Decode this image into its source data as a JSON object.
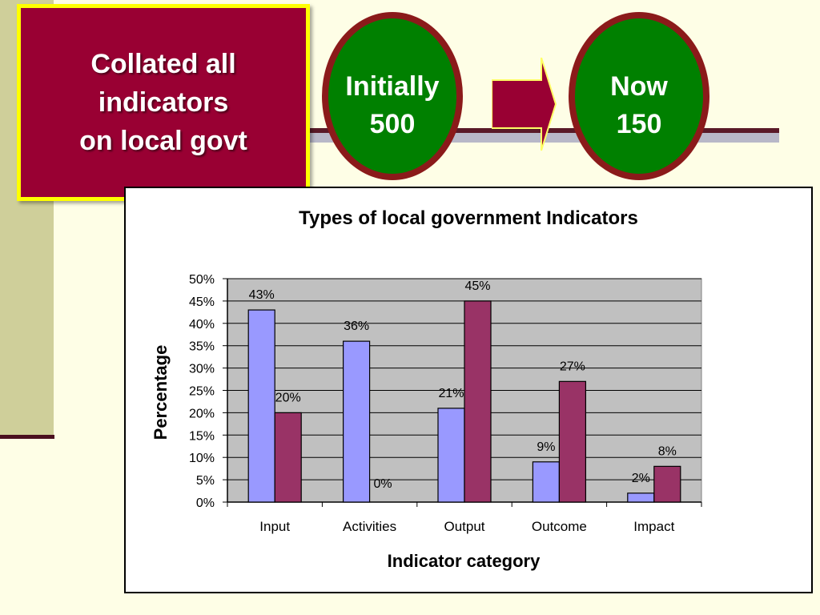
{
  "slide": {
    "title_lines": [
      "Collated all",
      "indicators",
      "on local govt"
    ],
    "circle_initial": {
      "label": "Initially",
      "value": "500"
    },
    "circle_now": {
      "label": "Now",
      "value": "150"
    },
    "colors": {
      "box_bg": "#990033",
      "box_border": "#ffff00",
      "circle_fill": "#008000",
      "circle_border": "#8b1a1a",
      "arrow": "#990033"
    }
  },
  "chart_data": {
    "type": "bar",
    "title": "Types of local government Indicators",
    "xlabel": "Indicator category",
    "ylabel": "Percentage",
    "categories": [
      "Input",
      "Activities",
      "Output",
      "Outcome",
      "Impact"
    ],
    "ylim": [
      0,
      50
    ],
    "yticks": [
      "0%",
      "5%",
      "10%",
      "15%",
      "20%",
      "25%",
      "30%",
      "35%",
      "40%",
      "45%",
      "50%"
    ],
    "series": [
      {
        "values": [
          43,
          36,
          21,
          9,
          2
        ],
        "labels": [
          "43%",
          "36%",
          "21%",
          "9%",
          "2%"
        ],
        "color": "#9999ff"
      },
      {
        "values": [
          20,
          0,
          45,
          27,
          8
        ],
        "labels": [
          "20%",
          "0%",
          "45%",
          "27%",
          "8%"
        ],
        "color": "#993366"
      }
    ],
    "plot_bg": "#c0c0c0",
    "grid": true,
    "legend": "none"
  }
}
